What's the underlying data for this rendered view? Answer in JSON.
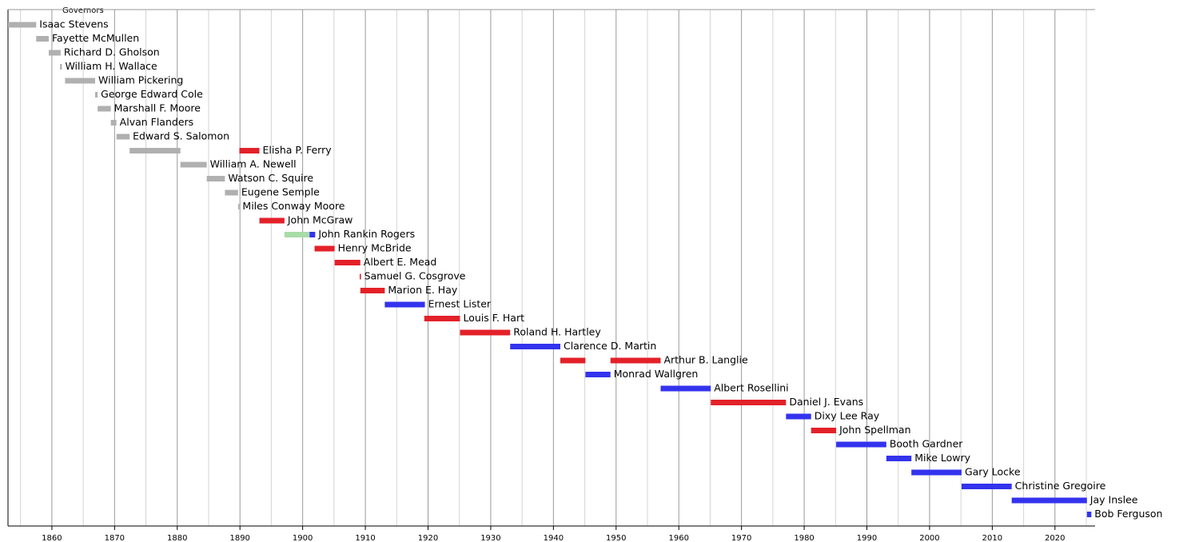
{
  "chart_data": {
    "type": "timeline",
    "title": "Governors",
    "xlim": [
      1853,
      2026.4
    ],
    "xticks": [
      1860,
      1870,
      1880,
      1890,
      1900,
      1910,
      1920,
      1930,
      1940,
      1950,
      1960,
      1970,
      1980,
      1990,
      2000,
      2010,
      2020
    ],
    "minor_xticks": [
      1855,
      1865,
      1875,
      1885,
      1895,
      1905,
      1915,
      1925,
      1935,
      1945,
      1955,
      1965,
      1975,
      1985,
      1995,
      2005,
      2015,
      2025
    ],
    "grid": true,
    "rows": [
      {
        "name": "Isaac Stevens",
        "terms": [
          {
            "start": 1853,
            "end": 1857.5,
            "color": "#b0b0b0"
          }
        ]
      },
      {
        "name": "Fayette McMullen",
        "terms": [
          {
            "start": 1857.5,
            "end": 1859.5,
            "color": "#b0b0b0"
          }
        ]
      },
      {
        "name": "Richard D. Gholson",
        "terms": [
          {
            "start": 1859.5,
            "end": 1861.4,
            "color": "#b0b0b0"
          }
        ]
      },
      {
        "name": "William H. Wallace",
        "terms": [
          {
            "start": 1861.3,
            "end": 1861.6,
            "color": "#b0b0b0"
          }
        ]
      },
      {
        "name": "William Pickering",
        "terms": [
          {
            "start": 1862.1,
            "end": 1866.9,
            "color": "#b0b0b0"
          }
        ]
      },
      {
        "name": "George Edward Cole",
        "terms": [
          {
            "start": 1866.9,
            "end": 1867.3,
            "color": "#b0b0b0"
          }
        ]
      },
      {
        "name": "Marshall F. Moore",
        "terms": [
          {
            "start": 1867.3,
            "end": 1869.4,
            "color": "#b0b0b0"
          }
        ]
      },
      {
        "name": "Alvan Flanders",
        "terms": [
          {
            "start": 1869.4,
            "end": 1870.3,
            "color": "#b0b0b0"
          }
        ]
      },
      {
        "name": "Edward S. Salomon",
        "terms": [
          {
            "start": 1870.3,
            "end": 1872.4,
            "color": "#b0b0b0"
          }
        ]
      },
      {
        "name": "Elisha P. Ferry",
        "terms": [
          {
            "start": 1872.4,
            "end": 1880.5,
            "color": "#b0b0b0"
          },
          {
            "start": 1889.9,
            "end": 1893.1,
            "color": "#e32129"
          }
        ]
      },
      {
        "name": "William A. Newell",
        "terms": [
          {
            "start": 1880.5,
            "end": 1884.7,
            "color": "#b0b0b0"
          }
        ]
      },
      {
        "name": "Watson C. Squire",
        "terms": [
          {
            "start": 1884.7,
            "end": 1887.6,
            "color": "#b0b0b0"
          }
        ]
      },
      {
        "name": "Eugene Semple",
        "terms": [
          {
            "start": 1887.6,
            "end": 1889.7,
            "color": "#b0b0b0"
          }
        ]
      },
      {
        "name": "Miles Conway Moore",
        "terms": [
          {
            "start": 1889.7,
            "end": 1889.9,
            "color": "#b0b0b0"
          }
        ]
      },
      {
        "name": "John McGraw",
        "terms": [
          {
            "start": 1893.1,
            "end": 1897.1,
            "color": "#e32129"
          }
        ]
      },
      {
        "name": "John Rankin Rogers",
        "terms": [
          {
            "start": 1897.1,
            "end": 1901.1,
            "color": "#a8dca8"
          },
          {
            "start": 1901.1,
            "end": 1902,
            "color": "#3333ee"
          }
        ]
      },
      {
        "name": "Henry McBride",
        "terms": [
          {
            "start": 1901.9,
            "end": 1905.1,
            "color": "#e32129"
          }
        ]
      },
      {
        "name": "Albert E. Mead",
        "terms": [
          {
            "start": 1905.1,
            "end": 1909.2,
            "color": "#e32129"
          }
        ]
      },
      {
        "name": "Samuel G. Cosgrove",
        "terms": [
          {
            "start": 1909.1,
            "end": 1909.3,
            "color": "#e32129"
          }
        ]
      },
      {
        "name": "Marion E. Hay",
        "terms": [
          {
            "start": 1909.2,
            "end": 1913.1,
            "color": "#e32129"
          }
        ]
      },
      {
        "name": "Ernest Lister",
        "terms": [
          {
            "start": 1913.1,
            "end": 1919.5,
            "color": "#3333ee"
          }
        ]
      },
      {
        "name": "Louis F. Hart",
        "terms": [
          {
            "start": 1919.4,
            "end": 1925.1,
            "color": "#e32129"
          }
        ]
      },
      {
        "name": "Roland H. Hartley",
        "terms": [
          {
            "start": 1925.1,
            "end": 1933.1,
            "color": "#e32129"
          }
        ]
      },
      {
        "name": "Clarence D. Martin",
        "terms": [
          {
            "start": 1933.1,
            "end": 1941.1,
            "color": "#3333ee"
          }
        ]
      },
      {
        "name": "Arthur B. Langlie",
        "terms": [
          {
            "start": 1941.1,
            "end": 1945.1,
            "color": "#e32129"
          },
          {
            "start": 1949.1,
            "end": 1957.1,
            "color": "#e32129"
          }
        ]
      },
      {
        "name": "Monrad Wallgren",
        "terms": [
          {
            "start": 1945.1,
            "end": 1949.1,
            "color": "#3333ee"
          }
        ]
      },
      {
        "name": "Albert Rosellini",
        "terms": [
          {
            "start": 1957.1,
            "end": 1965.1,
            "color": "#3333ee"
          }
        ]
      },
      {
        "name": "Daniel J. Evans",
        "terms": [
          {
            "start": 1965.1,
            "end": 1977.1,
            "color": "#e32129"
          }
        ]
      },
      {
        "name": "Dixy Lee Ray",
        "terms": [
          {
            "start": 1977.1,
            "end": 1981.1,
            "color": "#3333ee"
          }
        ]
      },
      {
        "name": "John Spellman",
        "terms": [
          {
            "start": 1981.1,
            "end": 1985.1,
            "color": "#e32129"
          }
        ]
      },
      {
        "name": "Booth Gardner",
        "terms": [
          {
            "start": 1985.1,
            "end": 1993.1,
            "color": "#3333ee"
          }
        ]
      },
      {
        "name": "Mike Lowry",
        "terms": [
          {
            "start": 1993.1,
            "end": 1997.1,
            "color": "#3333ee"
          }
        ]
      },
      {
        "name": "Gary Locke",
        "terms": [
          {
            "start": 1997.1,
            "end": 2005.1,
            "color": "#3333ee"
          }
        ]
      },
      {
        "name": "Christine Gregoire",
        "terms": [
          {
            "start": 2005.1,
            "end": 2013.1,
            "color": "#3333ee"
          }
        ]
      },
      {
        "name": "Jay Inslee",
        "terms": [
          {
            "start": 2013.1,
            "end": 2025.1,
            "color": "#3333ee"
          }
        ]
      },
      {
        "name": "Bob Ferguson",
        "terms": [
          {
            "start": 2025.1,
            "end": 2025.8,
            "color": "#3333ee"
          }
        ]
      }
    ]
  }
}
